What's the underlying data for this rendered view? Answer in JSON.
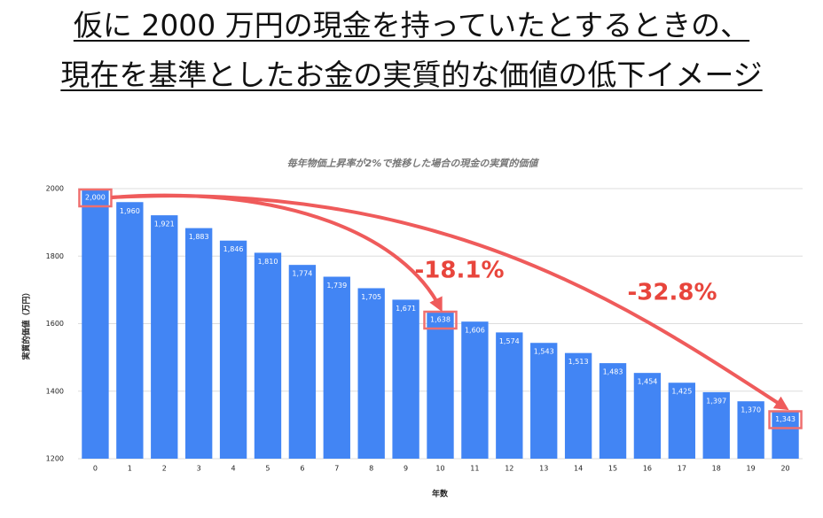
{
  "heading": [
    "仮に 2000 万円の現金を持っていたとするときの、",
    "現在を基準としたお金の実質的な価値の低下イメージ"
  ],
  "chart_data": {
    "type": "bar",
    "title": "毎年物価上昇率が2%で推移した場合の現金の実質的価値",
    "x_label": "年数",
    "y_label": "実質的価値（万円）",
    "categories": [
      "0",
      "1",
      "2",
      "3",
      "4",
      "5",
      "6",
      "7",
      "8",
      "9",
      "10",
      "11",
      "12",
      "13",
      "14",
      "15",
      "16",
      "17",
      "18",
      "19",
      "20"
    ],
    "values": [
      2000,
      1960,
      1921,
      1883,
      1846,
      1810,
      1774,
      1739,
      1705,
      1671,
      1638,
      1606,
      1574,
      1543,
      1513,
      1483,
      1454,
      1425,
      1397,
      1370,
      1343
    ],
    "value_labels": [
      "2,000",
      "1,960",
      "1,921",
      "1,883",
      "1,846",
      "1,810",
      "1,774",
      "1,739",
      "1,705",
      "1,671",
      "1,638",
      "1,606",
      "1,574",
      "1,543",
      "1,513",
      "1,483",
      "1,454",
      "1,425",
      "1,397",
      "1,370",
      "1,343"
    ],
    "color": "#4285f4",
    "ylim": [
      1200,
      2000
    ],
    "yticks": [
      1200,
      1400,
      1600,
      1800,
      2000
    ],
    "grid": true,
    "annotations": [
      "-18.1%",
      "-32.8%"
    ]
  }
}
